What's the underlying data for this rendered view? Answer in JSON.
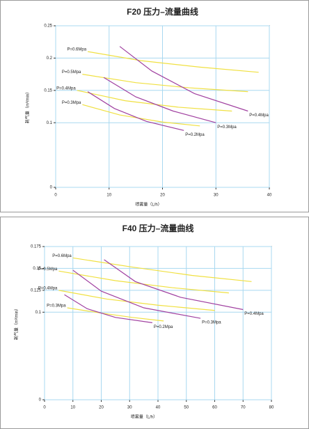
{
  "chart_data": [
    {
      "type": "line",
      "title": "F20 压力–流量曲线",
      "x_label": "喷雾量（L/h）",
      "y_label": "耗气量（m³/min）",
      "xlim": [
        0,
        40
      ],
      "xticks": [
        0,
        10,
        20,
        30,
        40
      ],
      "ylim": [
        0,
        0.25
      ],
      "yticks": [
        0,
        0.1,
        0.15,
        0.2,
        0.25
      ],
      "grid": true,
      "series": [
        {
          "name": "P=0.6Mpa",
          "color": "#f0e040",
          "x": [
            6,
            16,
            27,
            38
          ],
          "values": [
            0.21,
            0.196,
            0.186,
            0.178
          ]
        },
        {
          "name": "P=0.5Mpa",
          "color": "#f0e040",
          "x": [
            5,
            15,
            25,
            36
          ],
          "values": [
            0.175,
            0.162,
            0.154,
            0.148
          ]
        },
        {
          "name": "P=0.4Mpa",
          "color": "#f0e040",
          "x": [
            4,
            13,
            23,
            33
          ],
          "values": [
            0.15,
            0.134,
            0.124,
            0.118
          ]
        },
        {
          "name": "P=0.3Mpa",
          "color": "#f0e040",
          "x": [
            5,
            12,
            20,
            27
          ],
          "values": [
            0.128,
            0.112,
            0.101,
            0.095
          ]
        },
        {
          "name": "P=0.4Mpa",
          "color": "#a040a0",
          "x": [
            12,
            18,
            26,
            36
          ],
          "values": [
            0.218,
            0.18,
            0.145,
            0.118
          ]
        },
        {
          "name": "P=0.3Mpa",
          "color": "#a040a0",
          "x": [
            9,
            15,
            22,
            30
          ],
          "values": [
            0.17,
            0.14,
            0.118,
            0.1
          ]
        },
        {
          "name": "P=0.2Mpa",
          "color": "#a040a0",
          "x": [
            6,
            11,
            17,
            24
          ],
          "values": [
            0.148,
            0.122,
            0.102,
            0.088
          ]
        }
      ]
    },
    {
      "type": "line",
      "title": "F40 压力–流量曲线",
      "x_label": "喷雾量（L/h）",
      "y_label": "耗气量（m³/min）",
      "xlim": [
        0,
        80
      ],
      "xticks": [
        0,
        10,
        20,
        30,
        40,
        50,
        60,
        70,
        80
      ],
      "ylim": [
        0,
        0.175
      ],
      "yticks": [
        0,
        0.1,
        0.125,
        0.15,
        0.175
      ],
      "grid": true,
      "series": [
        {
          "name": "P=0.6Mpa",
          "color": "#f0e040",
          "x": [
            10,
            30,
            52,
            73
          ],
          "values": [
            0.162,
            0.152,
            0.142,
            0.135
          ]
        },
        {
          "name": "P=0.5Mpa",
          "color": "#f0e040",
          "x": [
            5,
            25,
            45,
            65
          ],
          "values": [
            0.147,
            0.136,
            0.128,
            0.122
          ]
        },
        {
          "name": "P=0.4Mpa",
          "color": "#f0e040",
          "x": [
            5,
            22,
            40,
            60
          ],
          "values": [
            0.125,
            0.115,
            0.108,
            0.102
          ]
        },
        {
          "name": "P=0.3Mpa",
          "color": "#f0e040",
          "x": [
            8,
            20,
            31,
            42
          ],
          "values": [
            0.105,
            0.099,
            0.094,
            0.09
          ]
        },
        {
          "name": "P=0.4Mpa",
          "color": "#a040a0",
          "x": [
            21,
            32,
            48,
            70
          ],
          "values": [
            0.16,
            0.135,
            0.117,
            0.103
          ]
        },
        {
          "name": "P=0.3Mpa",
          "color": "#a040a0",
          "x": [
            10,
            20,
            35,
            55
          ],
          "values": [
            0.148,
            0.124,
            0.105,
            0.093
          ]
        },
        {
          "name": "P=0.2Mpa",
          "color": "#a040a0",
          "x": [
            7,
            15,
            25,
            38
          ],
          "values": [
            0.12,
            0.104,
            0.094,
            0.088
          ]
        }
      ]
    }
  ]
}
